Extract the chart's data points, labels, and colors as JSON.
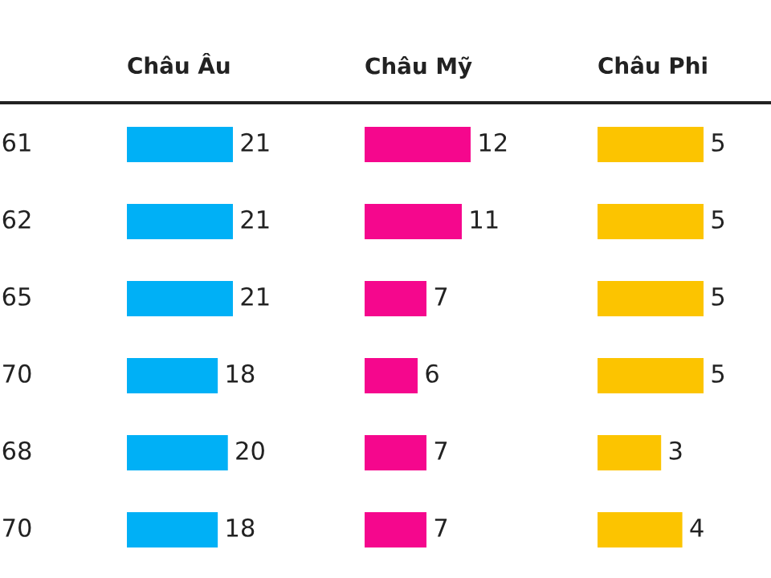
{
  "chart_data": [
    {
      "type": "other",
      "annotations": [
        "61",
        "62",
        "65",
        "70",
        "68",
        "70"
      ]
    },
    {
      "type": "bar",
      "orientation": "horizontal",
      "title": "Châu Âu",
      "categories": [
        null,
        null,
        null,
        null,
        null,
        null
      ],
      "values": [
        21,
        21,
        21,
        18,
        20,
        18
      ],
      "color": "#00b0f6",
      "data_labels": true
    },
    {
      "type": "bar",
      "orientation": "horizontal",
      "title": "Châu Mỹ",
      "categories": [
        null,
        null,
        null,
        null,
        null,
        null
      ],
      "values": [
        12,
        11,
        7,
        6,
        7,
        7
      ],
      "color": "#f5078d",
      "data_labels": true
    },
    {
      "type": "bar",
      "orientation": "horizontal",
      "title": "Châu Phi",
      "categories": [
        null,
        null,
        null,
        null,
        null,
        null
      ],
      "values": [
        5,
        5,
        5,
        5,
        3,
        4
      ],
      "color": "#fcc400",
      "data_labels": true
    }
  ]
}
